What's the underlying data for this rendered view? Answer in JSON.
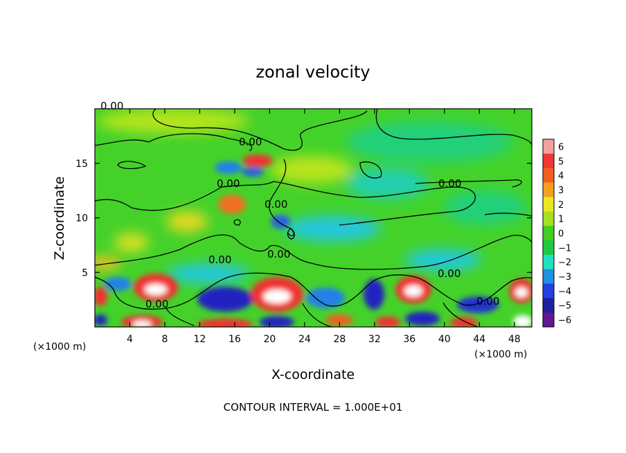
{
  "chart_data": {
    "type": "heatmap",
    "title": "zonal velocity",
    "xlabel": "X-coordinate",
    "ylabel": "Z-coordinate",
    "x_unit_label": "(×1000 m)",
    "footer": "CONTOUR INTERVAL = 1.000E+01",
    "xlim": [
      0,
      50
    ],
    "ylim": [
      0,
      20
    ],
    "x_ticks": [
      4,
      8,
      12,
      16,
      20,
      24,
      28,
      32,
      36,
      40,
      44,
      48
    ],
    "y_ticks": [
      5,
      10,
      15
    ],
    "colorbar": {
      "ticks": [
        6,
        5,
        4,
        3,
        2,
        1,
        0,
        -1,
        -2,
        -3,
        -4,
        -5,
        -6
      ],
      "colors": [
        "#f4a0a0",
        "#f03838",
        "#f06020",
        "#f4a020",
        "#e8e820",
        "#a8e020",
        "#40d020",
        "#20c840",
        "#20e0c0",
        "#2090e0",
        "#2040e0",
        "#2020a0",
        "#601890"
      ]
    },
    "contour_label": "0.00",
    "contour_label_count": 10
  }
}
